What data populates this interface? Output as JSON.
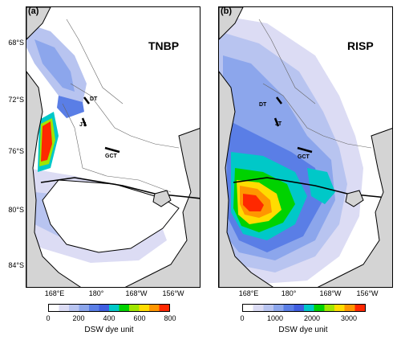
{
  "panels": [
    {
      "letter": "(a)",
      "title": "TNBP"
    },
    {
      "letter": "(b)",
      "title": "RISP"
    }
  ],
  "places": [
    "DT",
    "JT",
    "GCT"
  ],
  "lat_ticks": [
    "68°S",
    "72°S",
    "76°S",
    "80°S",
    "84°S"
  ],
  "lon_ticks": [
    "168°E",
    "180°",
    "168°W",
    "156°W"
  ],
  "colorbars": [
    {
      "ticks": [
        "0",
        "200",
        "400",
        "600",
        "800"
      ],
      "unit": "DSW dye unit"
    },
    {
      "ticks": [
        "0",
        "1000",
        "2000",
        "3000"
      ],
      "unit": "DSW dye unit"
    }
  ],
  "colors": {
    "land": "#d4d4d4",
    "scale": [
      "#ffffff",
      "#dcdcf4",
      "#b8c4f0",
      "#8ca6ec",
      "#5a7ee6",
      "#3f5ee0",
      "#00c8c8",
      "#00d200",
      "#a0e600",
      "#ffdc00",
      "#ff9600",
      "#ff2800"
    ]
  }
}
